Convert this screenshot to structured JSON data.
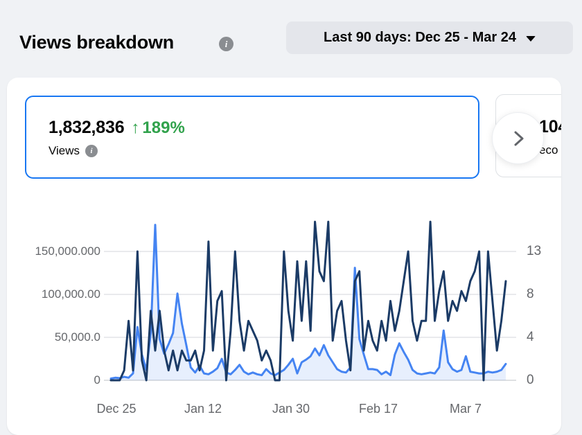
{
  "header": {
    "title": "Views breakdown",
    "date_range": {
      "label": "Last 90 days: Dec 25 - Mar 24"
    }
  },
  "icons": {
    "info_glyph": "i"
  },
  "cards": {
    "views": {
      "value": "1,832,836",
      "delta_arrow": "↑",
      "delta_value": "189%",
      "label": "Views"
    },
    "next": {
      "value_fragment": "104",
      "label_fragment": "eco"
    }
  },
  "chart_data": {
    "type": "line",
    "num_points": 90,
    "date_range": "Dec 25 - Mar 24",
    "x_tick_labels": [
      "Dec 25",
      "Jan 12",
      "Jan 30",
      "Feb 17",
      "Mar 7"
    ],
    "y_axis_left": {
      "tick_labels": [
        "150,000.000",
        "100,000.00",
        "50,000.0",
        "0"
      ],
      "gridline_values": [
        150000,
        100000,
        50000,
        0
      ]
    },
    "y_axis_right": {
      "tick_labels": [
        "13",
        "8",
        "4",
        "0"
      ],
      "gridline_values": [
        13,
        8,
        4,
        0
      ]
    },
    "grid": true,
    "legend": "none",
    "series": [
      {
        "name": "views-daily",
        "axis": "left",
        "color": "#4584f2",
        "area_fill": true,
        "values": [
          2000,
          3000,
          2500,
          4000,
          3000,
          8000,
          62000,
          30000,
          12000,
          55000,
          181000,
          48000,
          31000,
          42000,
          55000,
          101000,
          66000,
          41000,
          15000,
          9000,
          17000,
          8000,
          7000,
          10000,
          14000,
          25000,
          9000,
          7000,
          12000,
          18000,
          10000,
          7000,
          9000,
          7000,
          6000,
          13000,
          8000,
          6000,
          9000,
          12000,
          18000,
          25000,
          8000,
          21000,
          24000,
          28000,
          37000,
          29000,
          41000,
          29000,
          21000,
          13000,
          10000,
          9000,
          15000,
          131000,
          48000,
          30000,
          13000,
          13000,
          12000,
          7000,
          10000,
          6000,
          30000,
          43000,
          33000,
          24000,
          12000,
          8000,
          7000,
          8000,
          9000,
          8000,
          15000,
          58000,
          21000,
          13000,
          10000,
          12000,
          28000,
          10000,
          9000,
          8000,
          8000,
          10000,
          9000,
          10000,
          12000,
          19000
        ]
      },
      {
        "name": "secondary-daily",
        "axis": "right",
        "color": "#1b3b66",
        "area_fill": false,
        "values": [
          0,
          0,
          0,
          1,
          6,
          1,
          13,
          2,
          0,
          7,
          3,
          7,
          3,
          1,
          3,
          1,
          3,
          2,
          2,
          3,
          1,
          3,
          14,
          3,
          8,
          9,
          0,
          5,
          13,
          6,
          3,
          6,
          5,
          4,
          2,
          3,
          2,
          0,
          0,
          13,
          7,
          4,
          12,
          6,
          12,
          5,
          16,
          11,
          10,
          16,
          4,
          7,
          8,
          4,
          1,
          10,
          11,
          3,
          6,
          4,
          3,
          6,
          4,
          8,
          5,
          7,
          10,
          13,
          6,
          4,
          6,
          6,
          16,
          6,
          9,
          11,
          6,
          8,
          7,
          9,
          8,
          10,
          11,
          13,
          0,
          13,
          8,
          3,
          6,
          10
        ]
      }
    ]
  }
}
